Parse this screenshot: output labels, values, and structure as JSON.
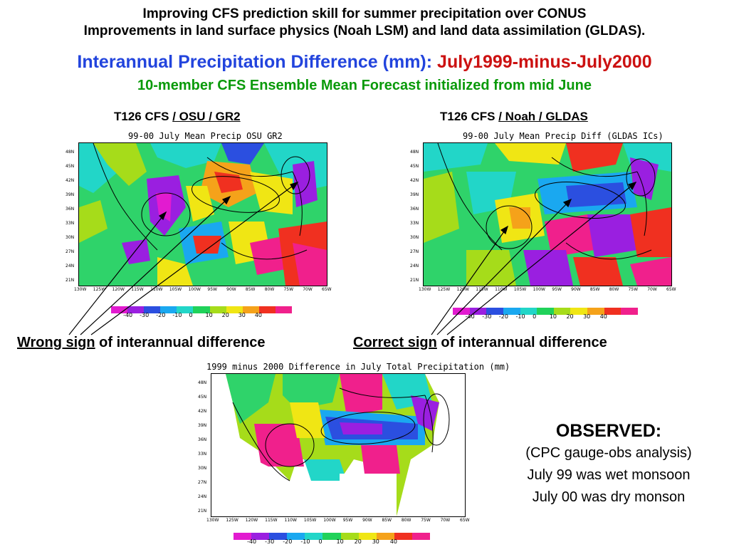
{
  "header": {
    "title_line1": "Improving CFS prediction skill for summer precipitation over CONUS",
    "title_line2": "Improvements in land surface physics (Noah LSM) and land data assimilation (GLDAS).",
    "heading_blue": "Interannual Precipitation Difference (mm):",
    "heading_red": "July1999-minus-July2000",
    "subheading": "10-member CFS Ensemble Mean Forecast initialized from mid June"
  },
  "left_panel": {
    "title_prefix": "T126 CFS",
    "title_suffix": "/ OSU / GR2",
    "map_title": "99-00 July Mean Precip OSU GR2",
    "caption_underlined": "Wrong sign",
    "caption_rest": " of interannual difference"
  },
  "right_panel": {
    "title_prefix": "T126 CFS",
    "title_suffix": "/ Noah / GLDAS",
    "map_title": "99-00 July Mean Precip Diff (GLDAS ICs)",
    "caption_underlined": "Correct sign",
    "caption_rest": " of interannual difference"
  },
  "bottom_panel": {
    "map_title": "1999 minus 2000 Difference in July Total Precipitation (mm)"
  },
  "observed": {
    "heading": "OBSERVED:",
    "line1": "(CPC gauge-obs analysis)",
    "line2": "July 99 was wet monsoon",
    "line3": "July 00 was dry monson"
  },
  "lat_ticks_small": [
    "48N",
    "45N",
    "42N",
    "39N",
    "36N",
    "33N",
    "30N",
    "27N",
    "24N",
    "21N"
  ],
  "lon_ticks_small": [
    "130W",
    "125W",
    "120W",
    "115W",
    "110W",
    "105W",
    "100W",
    "95W",
    "90W",
    "85W",
    "80W",
    "75W",
    "70W",
    "65W"
  ],
  "colorbar": {
    "labels": [
      "-40",
      "-30",
      "-20",
      "-10",
      "0",
      "10",
      "20",
      "30",
      "40"
    ],
    "colors": [
      "#e21bd0",
      "#9a1fe0",
      "#2b4fe0",
      "#1aa8f0",
      "#22d6c8",
      "#20d25a",
      "#a6dc1a",
      "#f0e614",
      "#f5a21a",
      "#f03020",
      "#f0208c"
    ]
  }
}
